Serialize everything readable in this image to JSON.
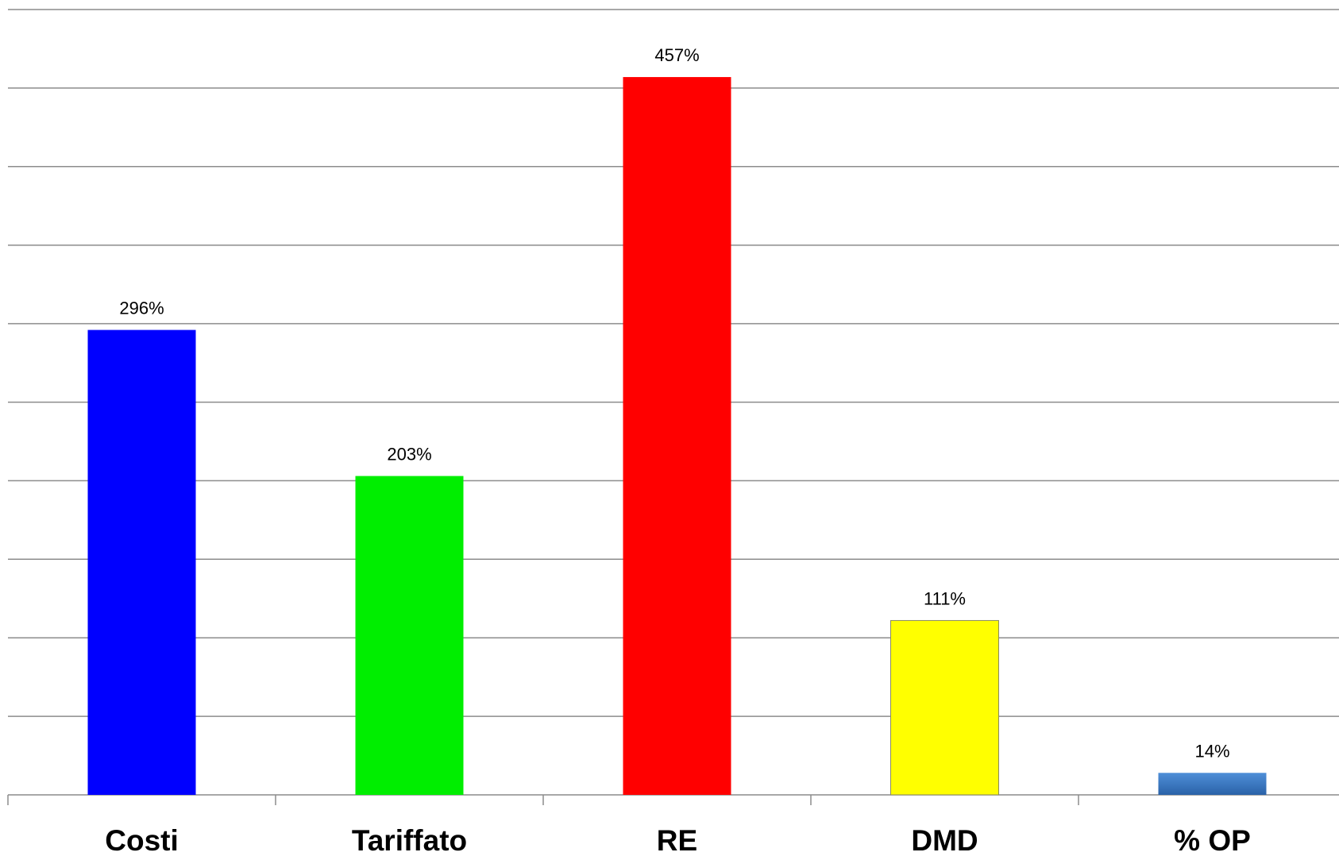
{
  "chart_data": {
    "type": "bar",
    "title": "",
    "xlabel": "",
    "ylabel": "",
    "categories": [
      "Costi",
      "Tariffato",
      "RE",
      "DMD",
      "% OP"
    ],
    "values": [
      296,
      203,
      457,
      111,
      14
    ],
    "data_labels": [
      "296%",
      "203%",
      "457%",
      "111%",
      "14%"
    ],
    "bar_colors": [
      "#0000ff",
      "#00ee00",
      "#ff0000",
      "#ffff00",
      "#3a7bc8"
    ],
    "ylim": [
      0,
      500
    ],
    "gridline_step": 50,
    "grid": true,
    "legend": "none"
  }
}
